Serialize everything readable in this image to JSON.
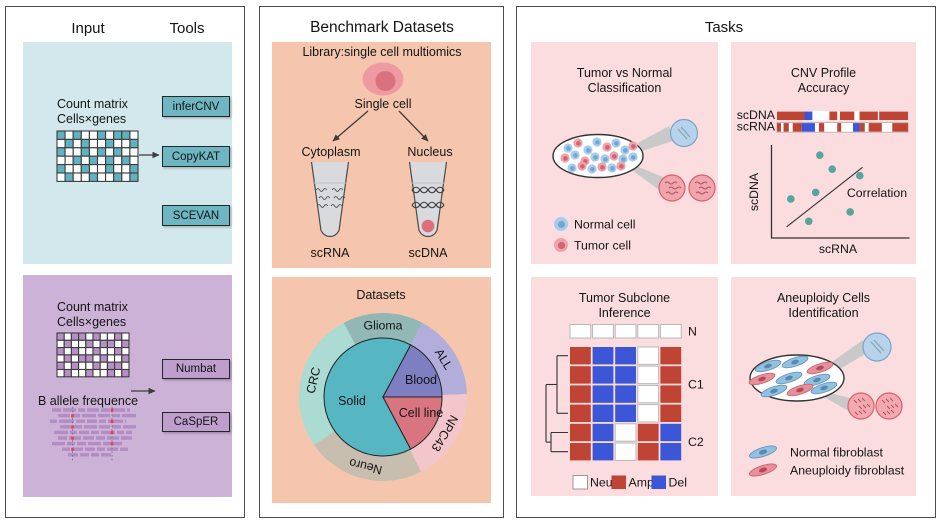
{
  "colors": {
    "teal_box_bg": "#d3e8ec",
    "teal_tool_fill": "#6db6c2",
    "purple_box_bg": "#cbb2d6",
    "purple_tool_fill": "#bd9ecd",
    "orange_box_bg": "#f5c6ad",
    "pink_box_bg": "#fbdcdf",
    "amp_red": "#c04434",
    "del_blue": "#3b57d8",
    "normal_cell_blue": "#a9cde9",
    "normal_cell_blue_dark": "#6fa8d4",
    "tumor_cell_red": "#f0a1aa",
    "tumor_cell_red_dark": "#cf6472",
    "scatter_dot": "#57a59d",
    "read_purple": "#b48cc4"
  },
  "input_panel": {
    "header_input": "Input",
    "header_tools": "Tools",
    "expression_section": {
      "count_matrix_line1": "Count matrix",
      "count_matrix_line2": "Cells×genes",
      "matrix_pattern": [
        "1010010110",
        "0101001001",
        "1001010100",
        "0010101010",
        "1001001001",
        "0100100101"
      ],
      "tools": [
        "inferCNV",
        "CopyKAT",
        "SCEVAN"
      ]
    },
    "allele_section": {
      "count_matrix_line1": "Count matrix",
      "count_matrix_line2": "Cells×genes",
      "matrix_pattern": [
        "1011010010",
        "0100101101",
        "1010010010",
        "0101101001",
        "1010010110",
        "0100100101"
      ],
      "baf_label": "B allele frequence",
      "tools": [
        "Numbat",
        "CaSpER"
      ]
    }
  },
  "benchmark_panel": {
    "title": "Benchmark Datasets",
    "library_label": "Library:single cell multiomics",
    "single_cell_label": "Single cell",
    "cytoplasm_label": "Cytoplasm",
    "nucleus_label": "Nucleus",
    "scrna_label": "scRNA",
    "scdna_label": "scDNA"
  },
  "tasks_panel": {
    "title": "Tasks",
    "classification": {
      "title_line1": "Tumor vs Normal",
      "title_line2": "Classification",
      "legend_normal": "Normal cell",
      "legend_tumor": "Tumor cell"
    },
    "cnv_accuracy": {
      "title_line1": "CNV Profile",
      "title_line2": "Accuracy"
    },
    "subclone": {
      "title_line1": "Tumor Subclone",
      "title_line2": "Inference"
    },
    "aneuploidy": {
      "title_line1": "Aneuploidy Cells",
      "title_line2": "Identification",
      "legend_normal": "Normal fibroblast",
      "legend_aneuploidy": "Aneuploidy fibroblast"
    }
  },
  "chart_data": [
    {
      "type": "pie",
      "title": "Datasets",
      "center_xy": [
        383,
        397
      ],
      "inner_radius": 59,
      "ring_outer_radius": 84,
      "inner_slices": [
        {
          "label": "Solid",
          "start_deg": 62,
          "end_deg": 298,
          "color": "#56b7c3",
          "label_xy": [
            352,
            401
          ]
        },
        {
          "label": "Blood",
          "start_deg": 0,
          "end_deg": 62,
          "color": "#7e7fc0",
          "label_xy": [
            421,
            380
          ]
        },
        {
          "label": "Cell line",
          "start_deg": 298,
          "end_deg": 360,
          "color": "#d97581",
          "label_xy": [
            421,
            413
          ]
        }
      ],
      "outer_ring": [
        {
          "label": "Glioma",
          "start_deg": 62,
          "end_deg": 118,
          "color": "#93b7b5"
        },
        {
          "label": "ALL",
          "start_deg": 2,
          "end_deg": 62,
          "color": "#b3addc"
        },
        {
          "label": "NPC43",
          "start_deg": 297,
          "end_deg": 362,
          "color": "#f3c6cb"
        },
        {
          "label": "Neuro",
          "start_deg": 215,
          "end_deg": 297,
          "color": "#c7beb0"
        },
        {
          "label": "CRC",
          "start_deg": 118,
          "end_deg": 215,
          "color": "#abdbd3"
        }
      ]
    },
    {
      "type": "cnv_tracks",
      "rows": [
        {
          "label": "scDNA",
          "segments": [
            [
              "Amp",
              21
            ],
            [
              "Del",
              6
            ],
            [
              "Neu",
              13
            ],
            [
              "Amp",
              6
            ],
            [
              "Neu",
              2
            ],
            [
              "Amp",
              11
            ],
            [
              "Neu",
              4
            ],
            [
              "Amp",
              14
            ],
            [
              "Neu",
              1
            ],
            [
              "Amp",
              22
            ]
          ]
        },
        {
          "label": "scRNA",
          "segments": [
            [
              "Amp",
              3
            ],
            [
              "Neu",
              2
            ],
            [
              "Amp",
              4
            ],
            [
              "Neu",
              3
            ],
            [
              "Amp",
              7
            ],
            [
              "Del",
              10
            ],
            [
              "Neu",
              3
            ],
            [
              "Amp",
              4
            ],
            [
              "Neu",
              10
            ],
            [
              "Amp",
              3
            ],
            [
              "Neu",
              9
            ],
            [
              "Del",
              5
            ],
            [
              "Amp",
              4
            ],
            [
              "Neu",
              3
            ],
            [
              "Amp",
              10
            ],
            [
              "Neu",
              8
            ],
            [
              "Amp",
              12
            ]
          ]
        }
      ],
      "value_colors": {
        "Neu": "#ffffff",
        "Amp": "#c04434",
        "Del": "#3b57d8"
      }
    },
    {
      "type": "scatter",
      "xlabel": "scRNA",
      "ylabel": "scDNA",
      "annotation": "Correlation",
      "point_color": "#57a59d",
      "points": [
        [
          0.35,
          0.89
        ],
        [
          0.44,
          0.74
        ],
        [
          0.64,
          0.67
        ],
        [
          0.32,
          0.49
        ],
        [
          0.14,
          0.42
        ],
        [
          0.57,
          0.28
        ],
        [
          0.27,
          0.18
        ]
      ],
      "trendline": [
        [
          0.11,
          0.12
        ],
        [
          0.66,
          0.76
        ]
      ],
      "axis_note": "unlabeled relative axes"
    },
    {
      "type": "heatmap",
      "normal_label": "N",
      "normal_row": [
        "Neu",
        "Neu",
        "Neu",
        "Neu",
        "Neu"
      ],
      "groups": [
        {
          "label": "C1",
          "rows": [
            [
              "Amp",
              "Del",
              "Del",
              "Neu",
              "Amp"
            ],
            [
              "Amp",
              "Del",
              "Del",
              "Neu",
              "Amp"
            ],
            [
              "Amp",
              "Del",
              "Del",
              "Neu",
              "Amp"
            ],
            [
              "Amp",
              "Del",
              "Del",
              "Neu",
              "Amp"
            ]
          ]
        },
        {
          "label": "C2",
          "rows": [
            [
              "Amp",
              "Del",
              "Neu",
              "Amp",
              "Del"
            ],
            [
              "Amp",
              "Del",
              "Neu",
              "Amp",
              "Del"
            ]
          ]
        }
      ],
      "value_colors": {
        "Neu": "#ffffff",
        "Amp": "#c04434",
        "Del": "#3b57d8"
      },
      "legend": [
        {
          "label": "Neu"
        },
        {
          "label": "Amp"
        },
        {
          "label": "Del"
        }
      ]
    }
  ]
}
